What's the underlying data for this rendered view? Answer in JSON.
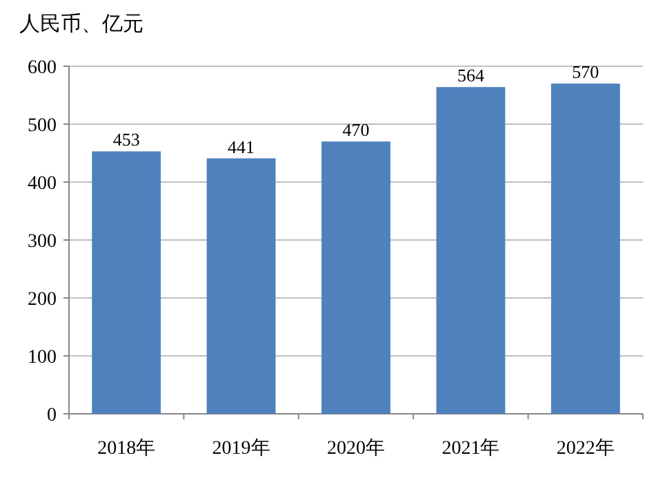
{
  "chart_data": {
    "type": "bar",
    "ylabel": "人民币、亿元",
    "categories": [
      "2018年",
      "2019年",
      "2020年",
      "2021年",
      "2022年"
    ],
    "values": [
      453,
      441,
      470,
      564,
      570
    ],
    "color": "#4f81bd",
    "ylim": [
      0,
      600
    ],
    "yticks": [
      0,
      100,
      200,
      300,
      400,
      500,
      600
    ],
    "grid": "y",
    "data_labels": true
  }
}
